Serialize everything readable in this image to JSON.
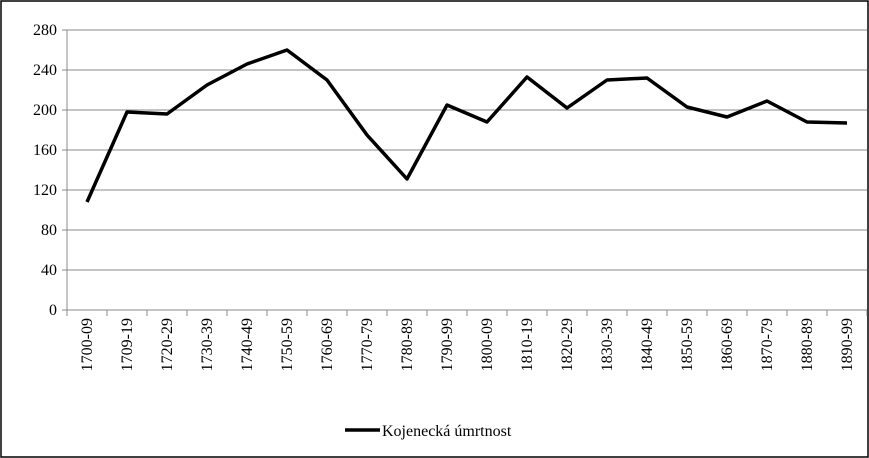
{
  "chart_data": {
    "type": "line",
    "categories": [
      "1700-09",
      "1709-19",
      "1720-29",
      "1730-39",
      "1740-49",
      "1750-59",
      "1760-69",
      "1770-79",
      "1780-89",
      "1790-99",
      "1800-09",
      "1810-19",
      "1820-29",
      "1830-39",
      "1840-49",
      "1850-59",
      "1860-69",
      "1870-79",
      "1880-89",
      "1890-99"
    ],
    "series": [
      {
        "name": "Kojenecká úmrtnost",
        "color": "#000000",
        "values": [
          108,
          198,
          196,
          225,
          246,
          260,
          230,
          175,
          131,
          205,
          188,
          233,
          202,
          230,
          232,
          203,
          193,
          209,
          188,
          187
        ]
      }
    ],
    "ylim": [
      0,
      280
    ],
    "yticks": [
      0,
      40,
      80,
      120,
      160,
      200,
      240,
      280
    ],
    "grid": true,
    "legend": "bottom"
  }
}
